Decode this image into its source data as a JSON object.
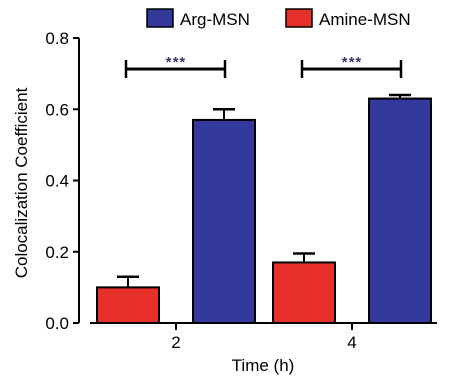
{
  "chart_data": {
    "type": "bar",
    "xlabel": "Time (h)",
    "ylabel": "Colocalization Coefficient",
    "categories": [
      "2",
      "4"
    ],
    "ylim": [
      0,
      0.8
    ],
    "yticks": [
      "0.0",
      "0.2",
      "0.4",
      "0.6",
      "0.8"
    ],
    "series": [
      {
        "name": "Amine-MSN",
        "values": [
          0.1,
          0.17
        ],
        "errors": [
          0.03,
          0.025
        ],
        "color": "#e8302a"
      },
      {
        "name": "Arg-MSN",
        "values": [
          0.57,
          0.63
        ],
        "errors": [
          0.03,
          0.01
        ],
        "color": "#33399a"
      }
    ],
    "legend": {
      "position": "top",
      "order": [
        "Arg-MSN",
        "Amine-MSN"
      ]
    },
    "significance": [
      {
        "category": "2",
        "label": "***"
      },
      {
        "category": "4",
        "label": "***"
      }
    ],
    "grid": false
  }
}
